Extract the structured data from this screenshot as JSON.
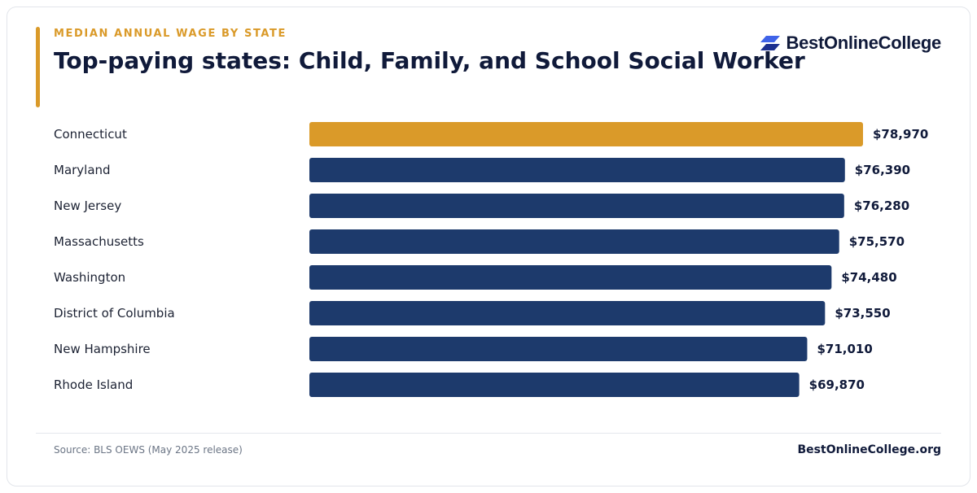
{
  "header": {
    "eyebrow": "MEDIAN ANNUAL WAGE BY STATE",
    "title": "Top-paying states: Child, Family, and School Social Worker"
  },
  "brand": {
    "name": "BestOnlineCollege",
    "logo_icon": "parallelogram-logo-icon"
  },
  "footer": {
    "source": "Source: BLS OEWS (May 2025 release)",
    "site": "BestOnlineCollege.org"
  },
  "colors": {
    "accent": "#da9a29",
    "bar": "#1d3a6c",
    "title": "#101a3a",
    "label": "#1c2233",
    "value": "#101a3a"
  },
  "chart_data": {
    "type": "bar",
    "orientation": "horizontal",
    "categories": [
      "Connecticut",
      "Maryland",
      "New Jersey",
      "Massachusetts",
      "Washington",
      "District of Columbia",
      "New Hampshire",
      "Rhode Island"
    ],
    "values": [
      78970,
      76390,
      76280,
      75570,
      74480,
      73550,
      71010,
      69870
    ],
    "value_labels": [
      "$78,970",
      "$76,390",
      "$76,280",
      "$75,570",
      "$74,480",
      "$73,550",
      "$71,010",
      "$69,870"
    ],
    "highlight_index": 0,
    "xlim": [
      0,
      78970
    ],
    "grid": false,
    "legend": "none"
  }
}
